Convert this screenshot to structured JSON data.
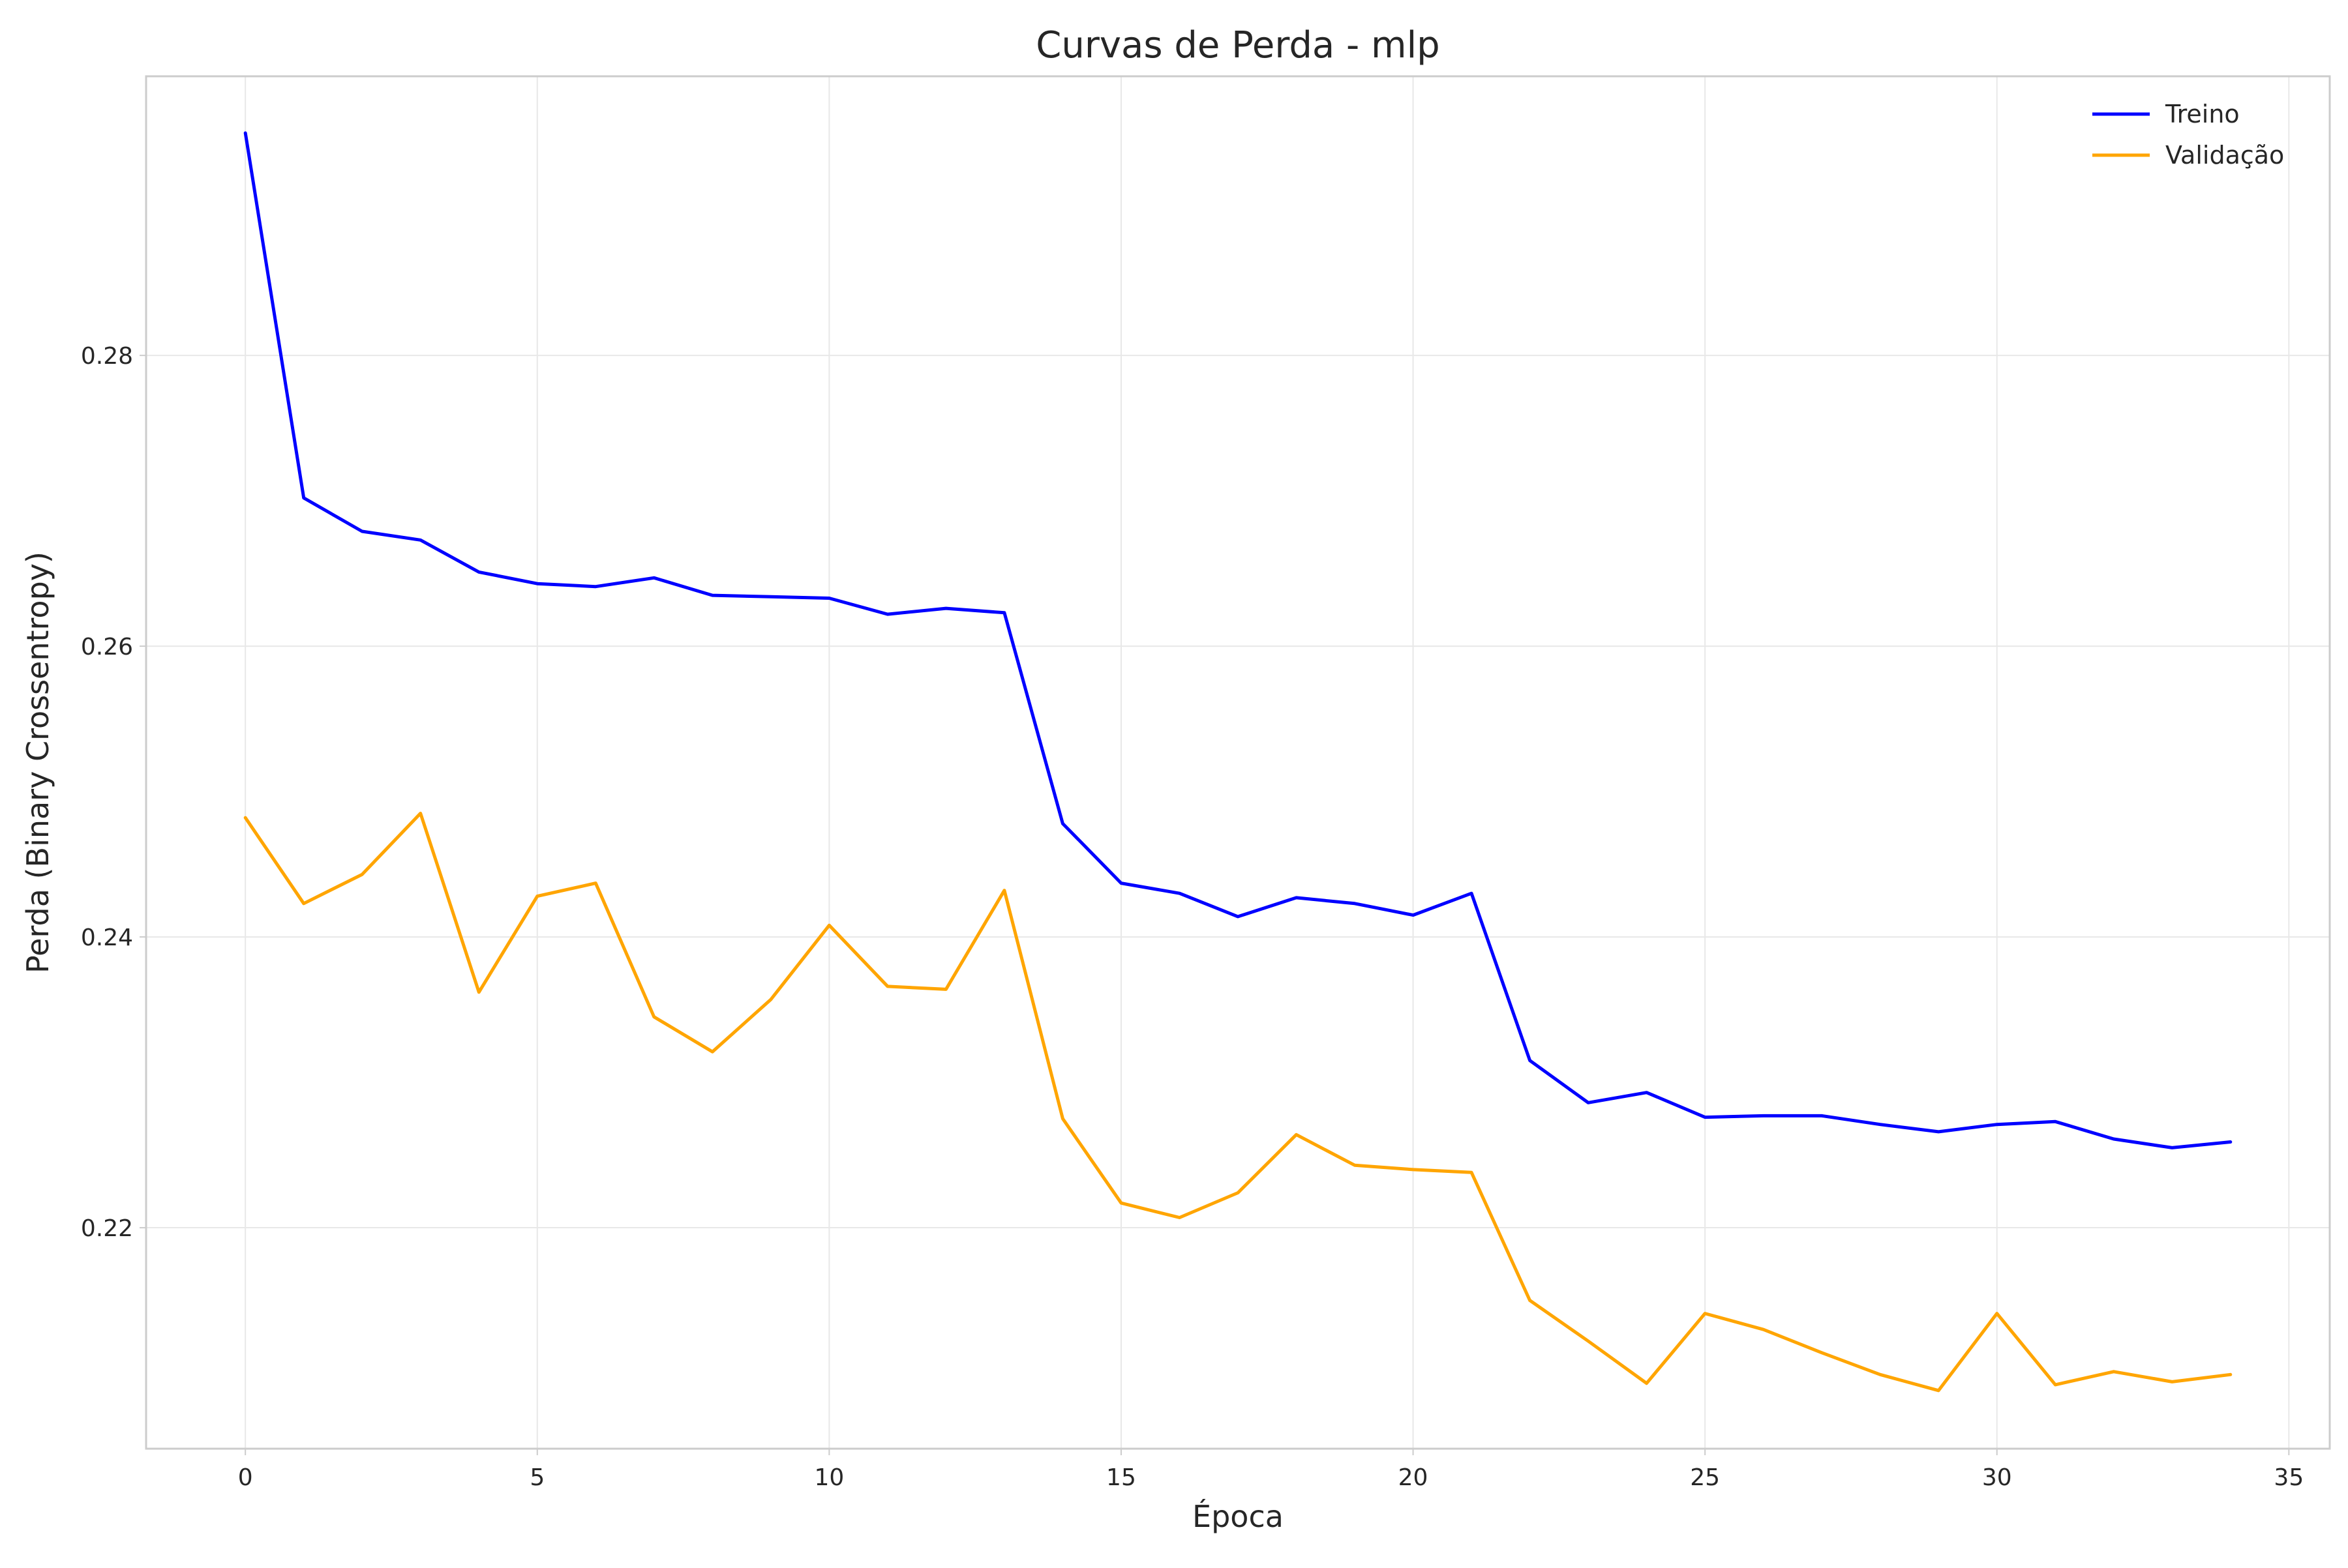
{
  "chart_data": {
    "type": "line",
    "title": "Curvas de Perda - mlp",
    "xlabel": "Época",
    "ylabel": "Perda (Binary Crossentropy)",
    "xlim": [
      -1.7,
      35.7
    ],
    "ylim": [
      0.2048,
      0.2992
    ],
    "xticks": [
      0,
      5,
      10,
      15,
      20,
      25,
      30,
      35
    ],
    "yticks": [
      0.22,
      0.24,
      0.26,
      0.28
    ],
    "ytick_labels": [
      "0.22",
      "0.24",
      "0.26",
      "0.28"
    ],
    "xtick_labels": [
      "0",
      "5",
      "10",
      "15",
      "20",
      "25",
      "30",
      "35"
    ],
    "grid": true,
    "legend_position": "top-right",
    "x": [
      0,
      1,
      2,
      3,
      4,
      5,
      6,
      7,
      8,
      9,
      10,
      11,
      12,
      13,
      14,
      15,
      16,
      17,
      18,
      19,
      20,
      21,
      22,
      23,
      24,
      25,
      26,
      27,
      28,
      29,
      30,
      31,
      32,
      33,
      34
    ],
    "series": [
      {
        "name": "Treino",
        "color": "#0000ff",
        "values": [
          0.2953,
          0.2702,
          0.2679,
          0.2673,
          0.2651,
          0.2643,
          0.2641,
          0.2647,
          0.2635,
          0.2634,
          0.2633,
          0.2622,
          0.2626,
          0.2623,
          0.2478,
          0.2437,
          0.243,
          0.2414,
          0.2427,
          0.2423,
          0.2415,
          0.243,
          0.2315,
          0.2286,
          0.2293,
          0.2276,
          0.2277,
          0.2277,
          0.2271,
          0.2266,
          0.2271,
          0.2273,
          0.2261,
          0.2255,
          0.2259
        ]
      },
      {
        "name": "Validação",
        "color": "#ffa500",
        "values": [
          0.2482,
          0.2423,
          0.2443,
          0.2485,
          0.2362,
          0.2428,
          0.2437,
          0.2345,
          0.2321,
          0.2357,
          0.2408,
          0.2366,
          0.2364,
          0.2432,
          0.2275,
          0.2217,
          0.2207,
          0.2224,
          0.2264,
          0.2243,
          0.224,
          0.2238,
          0.215,
          0.2122,
          0.2093,
          0.2141,
          0.213,
          0.2114,
          0.2099,
          0.2088,
          0.2141,
          0.2092,
          0.2101,
          0.2094,
          0.2099
        ]
      }
    ]
  }
}
